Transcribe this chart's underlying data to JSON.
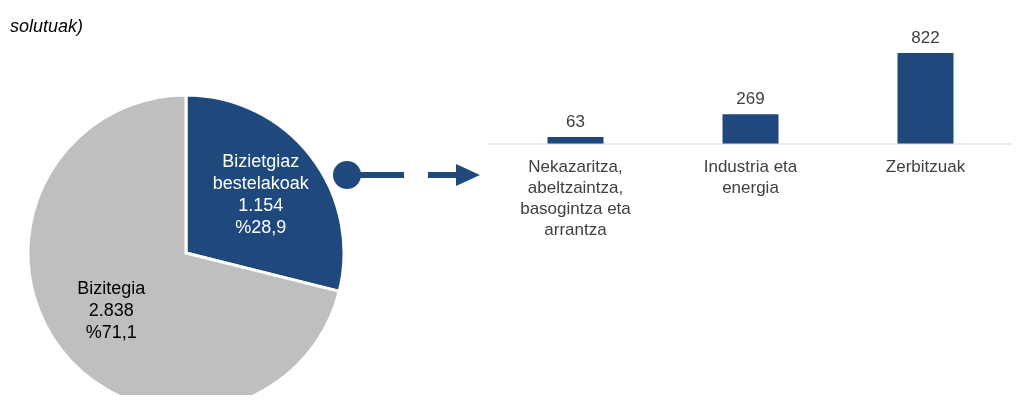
{
  "chart_data": [
    {
      "type": "pie",
      "title": "solutuak)",
      "categories": [
        "Bizietgiaz bestelakoak",
        "Bizitegia"
      ],
      "values": [
        1154,
        2838
      ],
      "colors": [
        "#1f497d",
        "#bfbfbf"
      ],
      "value_labels": [
        "1.154 %28,9",
        "2.838 %71,1"
      ]
    },
    {
      "type": "bar",
      "categories": [
        "Nekazaritza, abeltzaintza, basogintza eta arrantza",
        "Industria eta energia",
        "Zerbitzuak"
      ],
      "values": [
        63,
        269,
        822
      ],
      "color": "#1f497d",
      "data_labels": true
    }
  ]
}
